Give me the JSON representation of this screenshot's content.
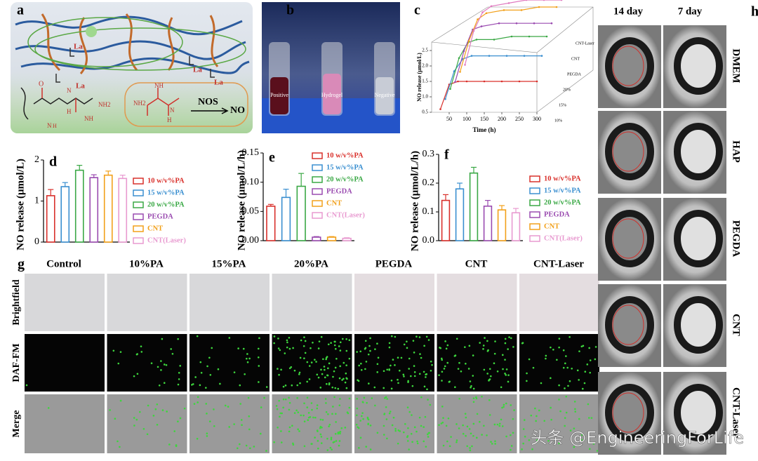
{
  "chart_data": [
    {
      "type": "line",
      "label": "c",
      "ylabel": "NO release (μmol/L)",
      "xlabel": "Time (h)",
      "x": [
        25,
        50,
        75,
        100,
        150,
        200,
        250,
        300
      ],
      "xlim": [
        0,
        300
      ],
      "xticks": [
        50,
        100,
        150,
        200,
        250,
        300
      ],
      "ylim": [
        0.5,
        3.0
      ],
      "yticks": [
        0.5,
        {
          "value": 1.0,
          "label": "1.0"
        },
        1.5,
        {
          "value": 2.0,
          "label": "2.0"
        },
        2.5
      ],
      "series": [
        {
          "name": "10%",
          "color": "#d9302b",
          "values": [
            0.6,
            1.4,
            1.5,
            1.5,
            1.5,
            1.5,
            1.5,
            1.5
          ]
        },
        {
          "name": "15%",
          "color": "#3a8fd0",
          "values": [
            0.7,
            1.6,
            2.0,
            2.1,
            2.1,
            2.1,
            2.1,
            2.1
          ]
        },
        {
          "name": "20%",
          "color": "#3aa845",
          "values": [
            0.8,
            1.8,
            2.3,
            2.4,
            2.4,
            2.5,
            2.5,
            2.5
          ]
        },
        {
          "name": "PEGDA",
          "color": "#9a4bb0",
          "values": [
            0.8,
            1.8,
            2.5,
            2.6,
            2.7,
            2.7,
            2.7,
            2.7
          ]
        },
        {
          "name": "CNT",
          "color": "#f2a01a",
          "values": [
            0.9,
            1.9,
            2.6,
            2.8,
            2.9,
            2.9,
            3.0,
            3.0
          ]
        },
        {
          "name": "CNT-Laser",
          "color": "#e07ac0",
          "values": [
            0.9,
            2.0,
            2.6,
            2.8,
            2.9,
            3.0,
            3.0,
            3.0
          ]
        }
      ]
    },
    {
      "type": "bar",
      "label": "d",
      "ylabel": "NO release (μmol/L)",
      "legend": "right",
      "ylim": [
        0,
        2
      ],
      "yticks": [
        0,
        1,
        2
      ],
      "series": [
        {
          "name": "10 w/v%PA",
          "color": "#d9302b",
          "values": [
            1.13
          ],
          "errors": [
            0.15
          ]
        },
        {
          "name": "15 w/v%PA",
          "color": "#3a8fd0",
          "values": [
            1.35
          ],
          "errors": [
            0.1
          ]
        },
        {
          "name": "20 w/v%PA",
          "color": "#3aa845",
          "values": [
            1.75
          ],
          "errors": [
            0.12
          ]
        },
        {
          "name": "PEGDA",
          "color": "#9a4bb0",
          "values": [
            1.57
          ],
          "errors": [
            0.07
          ]
        },
        {
          "name": "CNT",
          "color": "#f2a01a",
          "values": [
            1.63
          ],
          "errors": [
            0.1
          ]
        },
        {
          "name": "CNT(Laser)",
          "color": "#e89ad0",
          "values": [
            1.55
          ],
          "errors": [
            0.08
          ]
        }
      ]
    },
    {
      "type": "bar",
      "label": "e",
      "ylabel": "NO release (μmol/L/h)",
      "legend": "right",
      "ylim": [
        0,
        0.15
      ],
      "yticks": [
        {
          "value": 0,
          "label": "0.00"
        },
        0.05,
        {
          "value": 0.1,
          "label": "0.10"
        },
        0.15
      ],
      "series": [
        {
          "name": "10 w/v%PA",
          "color": "#d9302b",
          "values": [
            0.059
          ],
          "errors": [
            0.003
          ]
        },
        {
          "name": "15 w/v%PA",
          "color": "#3a8fd0",
          "values": [
            0.074
          ],
          "errors": [
            0.014
          ]
        },
        {
          "name": "20 w/v%PA",
          "color": "#3aa845",
          "values": [
            0.093
          ],
          "errors": [
            0.022
          ]
        },
        {
          "name": "PEGDA",
          "color": "#9a4bb0",
          "values": [
            0.006
          ],
          "errors": [
            0.001
          ]
        },
        {
          "name": "CNT",
          "color": "#f2a01a",
          "values": [
            0.006
          ],
          "errors": [
            0.001
          ]
        },
        {
          "name": "CNT(Laser)",
          "color": "#e89ad0",
          "values": [
            0.004
          ],
          "errors": [
            0.001
          ]
        }
      ]
    },
    {
      "type": "bar",
      "label": "f",
      "ylabel": "NO release (μmol/L/h)",
      "legend": "right",
      "ylim": [
        0,
        0.3
      ],
      "yticks": [
        {
          "value": 0,
          "label": "0.0"
        },
        0.1,
        0.2,
        0.3
      ],
      "series": [
        {
          "name": "10 w/v%PA",
          "color": "#d9302b",
          "values": [
            0.14
          ],
          "errors": [
            0.02
          ]
        },
        {
          "name": "15 w/v%PA",
          "color": "#3a8fd0",
          "values": [
            0.18
          ],
          "errors": [
            0.02
          ]
        },
        {
          "name": "20 w/v%PA",
          "color": "#3aa845",
          "values": [
            0.235
          ],
          "errors": [
            0.02
          ]
        },
        {
          "name": "PEGDA",
          "color": "#9a4bb0",
          "values": [
            0.12
          ],
          "errors": [
            0.02
          ]
        },
        {
          "name": "CNT",
          "color": "#f2a01a",
          "values": [
            0.107
          ],
          "errors": [
            0.015
          ]
        },
        {
          "name": "CNT(Laser)",
          "color": "#e89ad0",
          "values": [
            0.097
          ],
          "errors": [
            0.015
          ]
        }
      ]
    }
  ],
  "figure": {
    "a": {
      "label": "a",
      "la": [
        "La",
        "La",
        "La",
        "La"
      ],
      "chem": [
        "O",
        "N",
        "H",
        "NH",
        "NH2",
        "NH",
        "NH2",
        "N",
        "H",
        "N",
        "H"
      ],
      "enzyme": "NOS",
      "product": "NO"
    },
    "b": {
      "label": "b",
      "tubes": [
        "Positive",
        "Hydrogel",
        "Negative"
      ]
    },
    "g": {
      "label": "g",
      "columns": [
        "Control",
        "10%PA",
        "15%PA",
        "20%PA",
        "PEGDA",
        "CNT",
        "CNT-Laser"
      ],
      "rows": [
        "Brightfield",
        "DAF-FM",
        "Merge"
      ]
    },
    "h": {
      "label": "h",
      "columns": [
        "14 day",
        "7 day"
      ],
      "rows": [
        "DMEM",
        "HAP",
        "PEGDA",
        "CNT",
        "CNT-Laser"
      ]
    },
    "watermark": "头条 @EngineeringForLife"
  }
}
